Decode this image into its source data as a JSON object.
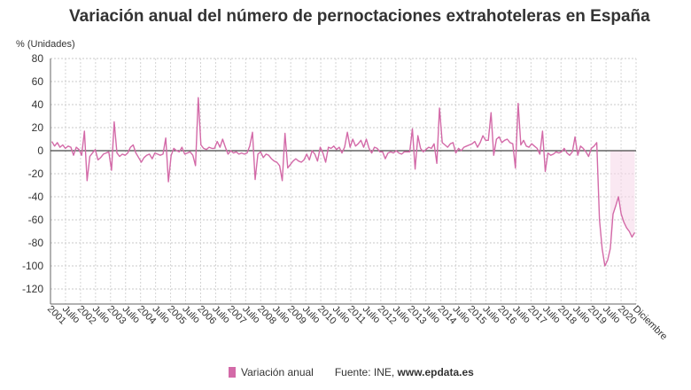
{
  "header": {
    "title": "Variación anual del número de pernoctaciones extrahoteleras en España",
    "unit_label": "% (Unidades)"
  },
  "legend": {
    "series_label": "Variación anual",
    "source_prefix": "Fuente: INE, ",
    "source_site": "www.epdata.es"
  },
  "chart_data": {
    "type": "line",
    "title": "Variación anual del número de pernoctaciones extrahoteleras en España",
    "ylabel": "% (Unidades)",
    "ylim": [
      -130,
      80
    ],
    "yticks": [
      80,
      60,
      40,
      20,
      0,
      -20,
      -40,
      -60,
      -80,
      -100,
      -120
    ],
    "grid": true,
    "legend_position": "bottom",
    "series_color": "#d36aa8",
    "x_tick_labels": [
      "2001",
      "Julio",
      "2002",
      "Julio",
      "2003",
      "Julio",
      "2004",
      "Julio",
      "2005",
      "Julio",
      "2006",
      "Julio",
      "2007",
      "Julio",
      "2008",
      "Julio",
      "2009",
      "Julio",
      "2010",
      "Julio",
      "2011",
      "Julio",
      "2012",
      "Julio",
      "2013",
      "Julio",
      "2014",
      "Julio",
      "2015",
      "Julio",
      "2016",
      "Julio",
      "2017",
      "Julio",
      "2018",
      "Julio",
      "2019",
      "Julio",
      "2020",
      "Diciembre"
    ],
    "series": [
      {
        "name": "Variación anual",
        "start": "2001-01",
        "end": "2020-12",
        "values": [
          8,
          4,
          7,
          3,
          5,
          2,
          4,
          3,
          -4,
          3,
          1,
          -4,
          17,
          -26,
          -5,
          -2,
          1,
          -8,
          -6,
          -3,
          -2,
          -1,
          -17,
          25,
          -2,
          -5,
          -3,
          -4,
          -2,
          3,
          5,
          -2,
          -6,
          -10,
          -6,
          -4,
          -3,
          -7,
          -2,
          -3,
          -4,
          -3,
          11,
          -27,
          -4,
          2,
          0,
          -1,
          3,
          -3,
          -2,
          -1,
          -4,
          -13,
          46,
          5,
          2,
          1,
          3,
          2,
          2,
          8,
          3,
          10,
          3,
          -3,
          0,
          -2,
          -1,
          -3,
          -2,
          -3,
          -2,
          4,
          16,
          -25,
          -3,
          -1,
          -6,
          -3,
          -4,
          -7,
          -9,
          -10,
          -13,
          -26,
          15,
          -15,
          -12,
          -9,
          -7,
          -9,
          -10,
          -8,
          -3,
          -8,
          0,
          -3,
          -9,
          3,
          -2,
          -10,
          3,
          2,
          4,
          1,
          3,
          -2,
          3,
          16,
          3,
          10,
          4,
          6,
          9,
          3,
          10,
          2,
          -2,
          3,
          2,
          -1,
          -1,
          -7,
          -2,
          -1,
          -2,
          0,
          -2,
          -3,
          -1,
          -1,
          -1,
          19,
          -16,
          13,
          2,
          -1,
          1,
          3,
          2,
          6,
          -11,
          37,
          7,
          5,
          3,
          6,
          7,
          -2,
          2,
          0,
          3,
          4,
          5,
          6,
          8,
          3,
          7,
          13,
          9,
          9,
          33,
          -4,
          10,
          12,
          7,
          9,
          10,
          7,
          6,
          -15,
          41,
          5,
          9,
          4,
          3,
          6,
          4,
          2,
          -3,
          17,
          -18,
          -2,
          -4,
          -3,
          -1,
          -2,
          -1,
          2,
          -2,
          -4,
          -1,
          12,
          -4,
          4,
          2,
          -1,
          -5,
          2,
          4,
          7,
          -60,
          -85,
          -100,
          -95,
          -85,
          -55,
          -48,
          -40,
          -55,
          -62,
          -67,
          -70,
          -75,
          -71
        ]
      }
    ]
  }
}
